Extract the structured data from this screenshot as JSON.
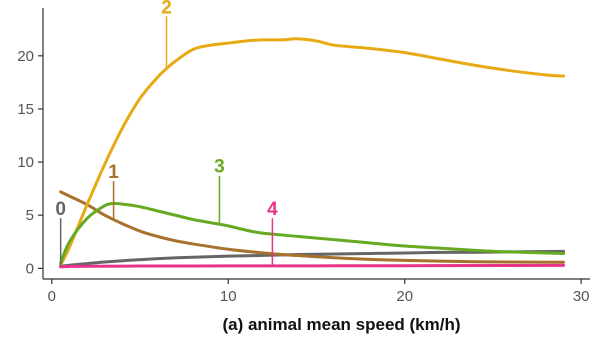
{
  "chart_data": {
    "type": "line",
    "title": "",
    "xlabel": "(a)  animal mean speed (km/h)",
    "ylabel": "",
    "xlim": [
      -0.5,
      30.5
    ],
    "ylim": [
      -1,
      24.5
    ],
    "x_ticks": [
      0,
      10,
      20,
      30
    ],
    "y_ticks": [
      0,
      5,
      10,
      15,
      20
    ],
    "grid": false,
    "legend": "none",
    "series": [
      {
        "name": "0",
        "color": "#666666",
        "label_at": [
          0.5,
          5.0
        ],
        "x": [
          0.5,
          1,
          2,
          3,
          4,
          5,
          6,
          8,
          10,
          12,
          14,
          16,
          18,
          20,
          22,
          24,
          26,
          29
        ],
        "y": [
          0.2,
          0.3,
          0.45,
          0.6,
          0.72,
          0.82,
          0.92,
          1.05,
          1.15,
          1.22,
          1.3,
          1.35,
          1.4,
          1.45,
          1.5,
          1.52,
          1.55,
          1.6
        ]
      },
      {
        "name": "1",
        "color": "#a8722e",
        "label_at": [
          3.5,
          8.5
        ],
        "x": [
          0.5,
          1,
          2,
          3,
          4,
          5,
          6,
          7,
          8,
          10,
          12,
          14,
          16,
          18,
          20,
          22,
          24,
          26,
          29
        ],
        "y": [
          7.2,
          6.8,
          6.0,
          5.0,
          4.2,
          3.5,
          3.0,
          2.6,
          2.3,
          1.8,
          1.45,
          1.2,
          1.0,
          0.85,
          0.75,
          0.68,
          0.62,
          0.6,
          0.58
        ]
      },
      {
        "name": "2",
        "color": "#e8aa14",
        "label_at": [
          6.5,
          24.0
        ],
        "x": [
          0.5,
          1,
          2,
          3,
          4,
          5,
          6,
          6.5,
          7,
          8,
          9,
          10,
          11,
          12,
          13,
          14,
          15,
          16,
          18,
          20,
          22,
          24,
          26,
          28,
          29
        ],
        "y": [
          0.3,
          2.0,
          6.0,
          9.8,
          13.2,
          16.0,
          18.0,
          18.8,
          19.5,
          20.6,
          21.0,
          21.2,
          21.4,
          21.5,
          21.5,
          21.6,
          21.4,
          21.0,
          20.7,
          20.3,
          19.7,
          19.1,
          18.6,
          18.2,
          18.1
        ]
      },
      {
        "name": "3",
        "color": "#66aa22",
        "label_at": [
          9.5,
          9.0
        ],
        "x": [
          0.5,
          1,
          2,
          3,
          3.5,
          4,
          5,
          6,
          7,
          8,
          9,
          10,
          11,
          12,
          14,
          16,
          18,
          20,
          22,
          24,
          26,
          29
        ],
        "y": [
          0.5,
          2.5,
          4.7,
          5.9,
          6.1,
          6.05,
          5.8,
          5.4,
          5.0,
          4.6,
          4.3,
          4.0,
          3.6,
          3.3,
          3.0,
          2.7,
          2.4,
          2.1,
          1.9,
          1.7,
          1.55,
          1.4
        ]
      },
      {
        "name": "4",
        "color": "#e8338c",
        "label_at": [
          12.5,
          5.0
        ],
        "x": [
          0.5,
          1,
          2,
          5,
          10,
          15,
          20,
          25,
          29
        ],
        "y": [
          0.15,
          0.18,
          0.2,
          0.22,
          0.23,
          0.24,
          0.25,
          0.27,
          0.28
        ]
      }
    ]
  }
}
